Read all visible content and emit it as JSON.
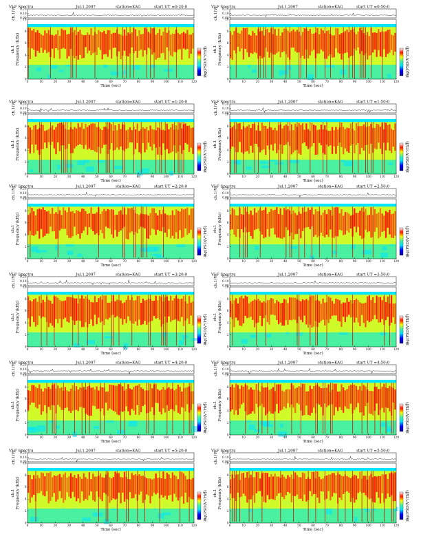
{
  "header": {
    "title": "VLF Spectra",
    "date": "Jul.1,2007",
    "station": "station=KAG",
    "start_prefix": "start  UT ="
  },
  "axes": {
    "xlabel": "Time (sec)",
    "ylabel": "Frequency (kHz)",
    "amp_label": "ch.1(V)",
    "colorbar_label": "log(PSD(V²/Hz))",
    "chan_label": "ch.1"
  },
  "colors": {
    "background_band": "#00e5ff",
    "noise": "#48f0a0",
    "mid": "#ffff00",
    "hiss": "#ff1a00",
    "dark": "#d01000"
  },
  "chart_data": [
    {
      "type": "heatmap",
      "start_ut": "0:20:0",
      "xlim": [
        0,
        120
      ],
      "ylim": [
        0,
        10
      ],
      "amp_ylim": [
        0,
        0.2
      ],
      "amp_ticks": [
        0.2,
        0.1,
        0.0
      ],
      "xticks": [
        0,
        10,
        20,
        30,
        40,
        50,
        60,
        70,
        80,
        90,
        100,
        110,
        120
      ],
      "yticks": [
        0,
        2,
        4,
        6,
        8,
        10
      ],
      "colorbar_range": [
        -5,
        0
      ]
    },
    {
      "type": "heatmap",
      "start_ut": "0:50:0",
      "xlim": [
        0,
        120
      ],
      "ylim": [
        0,
        10
      ],
      "amp_ylim": [
        0,
        0.2
      ],
      "amp_ticks": [
        0.2,
        0.1,
        0.0
      ],
      "xticks": [
        0,
        10,
        20,
        30,
        40,
        50,
        60,
        70,
        80,
        90,
        100,
        110,
        120
      ],
      "yticks": [
        0,
        2,
        4,
        6,
        8,
        10
      ],
      "colorbar_range": [
        -5,
        0
      ]
    },
    {
      "type": "heatmap",
      "start_ut": "1:20:0",
      "xlim": [
        0,
        120
      ],
      "ylim": [
        0,
        10
      ],
      "amp_ylim": [
        0,
        0.2
      ],
      "amp_ticks": [
        0.2,
        0.1,
        0.0
      ],
      "xticks": [
        0,
        10,
        20,
        30,
        40,
        50,
        60,
        70,
        80,
        90,
        100,
        110,
        120
      ],
      "yticks": [
        0,
        2,
        4,
        6,
        8,
        10
      ],
      "colorbar_range": [
        -5,
        0
      ]
    },
    {
      "type": "heatmap",
      "start_ut": "1:50:0",
      "xlim": [
        0,
        120
      ],
      "ylim": [
        0,
        10
      ],
      "amp_ylim": [
        0,
        0.2
      ],
      "amp_ticks": [
        0.2,
        0.1,
        0.0
      ],
      "xticks": [
        0,
        10,
        20,
        30,
        40,
        50,
        60,
        70,
        80,
        90,
        100,
        110,
        120
      ],
      "yticks": [
        0,
        2,
        4,
        6,
        8,
        10
      ],
      "colorbar_range": [
        -5,
        0
      ]
    },
    {
      "type": "heatmap",
      "start_ut": "2:20:0",
      "xlim": [
        0,
        120
      ],
      "ylim": [
        0,
        10
      ],
      "amp_ylim": [
        0,
        0.2
      ],
      "amp_ticks": [
        0.2,
        0.1,
        0.0
      ],
      "xticks": [
        0,
        10,
        20,
        30,
        40,
        50,
        60,
        70,
        80,
        90,
        100,
        110,
        120
      ],
      "yticks": [
        0,
        2,
        4,
        6,
        8,
        10
      ],
      "colorbar_range": [
        -5,
        0
      ]
    },
    {
      "type": "heatmap",
      "start_ut": "2:50:0",
      "xlim": [
        0,
        120
      ],
      "ylim": [
        0,
        10
      ],
      "amp_ylim": [
        0,
        0.2
      ],
      "amp_ticks": [
        0.2,
        0.1,
        0.0
      ],
      "xticks": [
        0,
        10,
        20,
        30,
        40,
        50,
        60,
        70,
        80,
        90,
        100,
        110,
        120
      ],
      "yticks": [
        0,
        2,
        4,
        6,
        8,
        10
      ],
      "colorbar_range": [
        -5,
        0
      ]
    },
    {
      "type": "heatmap",
      "start_ut": "3:20:0",
      "xlim": [
        0,
        120
      ],
      "ylim": [
        0,
        10
      ],
      "amp_ylim": [
        0,
        0.2
      ],
      "amp_ticks": [
        0.2,
        0.1,
        0.0
      ],
      "xticks": [
        0,
        10,
        20,
        30,
        40,
        50,
        60,
        70,
        80,
        90,
        100,
        110,
        120
      ],
      "yticks": [
        0,
        2,
        4,
        6,
        8,
        10
      ],
      "colorbar_range": [
        -5,
        0
      ]
    },
    {
      "type": "heatmap",
      "start_ut": "3:50:0",
      "xlim": [
        0,
        120
      ],
      "ylim": [
        0,
        10
      ],
      "amp_ylim": [
        0,
        0.2
      ],
      "amp_ticks": [
        0.2,
        0.1,
        0.0
      ],
      "xticks": [
        0,
        10,
        20,
        30,
        40,
        50,
        60,
        70,
        80,
        90,
        100,
        110,
        120
      ],
      "yticks": [
        0,
        2,
        4,
        6,
        8,
        10
      ],
      "colorbar_range": [
        -5,
        0
      ]
    },
    {
      "type": "heatmap",
      "start_ut": "4:20:0",
      "xlim": [
        0,
        120
      ],
      "ylim": [
        0,
        10
      ],
      "amp_ylim": [
        0,
        0.2
      ],
      "amp_ticks": [
        0.2,
        0.1,
        0.0
      ],
      "xticks": [
        0,
        10,
        20,
        30,
        40,
        50,
        60,
        70,
        80,
        90,
        100,
        110,
        120
      ],
      "yticks": [
        0,
        2,
        4,
        6,
        8,
        10
      ],
      "colorbar_range": [
        -5,
        0
      ]
    },
    {
      "type": "heatmap",
      "start_ut": "4:50:0",
      "xlim": [
        0,
        120
      ],
      "ylim": [
        0,
        10
      ],
      "amp_ylim": [
        0,
        0.2
      ],
      "amp_ticks": [
        0.2,
        0.1,
        0.0
      ],
      "xticks": [
        0,
        10,
        20,
        30,
        40,
        50,
        60,
        70,
        80,
        90,
        100,
        110,
        120
      ],
      "yticks": [
        0,
        2,
        4,
        6,
        8,
        10
      ],
      "colorbar_range": [
        -5,
        0
      ]
    },
    {
      "type": "heatmap",
      "start_ut": "5:20:0",
      "xlim": [
        0,
        120
      ],
      "ylim": [
        0,
        10
      ],
      "amp_ylim": [
        0,
        0.2
      ],
      "amp_ticks": [
        0.2,
        0.1,
        0.0
      ],
      "xticks": [
        0,
        10,
        20,
        30,
        40,
        50,
        60,
        70,
        80,
        90,
        100,
        110,
        120
      ],
      "yticks": [
        0,
        2,
        4,
        6,
        8,
        10
      ],
      "colorbar_range": [
        -5,
        0
      ]
    },
    {
      "type": "heatmap",
      "start_ut": "5:50:0",
      "xlim": [
        0,
        120
      ],
      "ylim": [
        0,
        10
      ],
      "amp_ylim": [
        0,
        0.2
      ],
      "amp_ticks": [
        0.2,
        0.1,
        0.0
      ],
      "xticks": [
        0,
        10,
        20,
        30,
        40,
        50,
        60,
        70,
        80,
        90,
        100,
        110,
        120
      ],
      "yticks": [
        0,
        2,
        4,
        6,
        8,
        10
      ],
      "colorbar_range": [
        -5,
        0
      ]
    }
  ]
}
